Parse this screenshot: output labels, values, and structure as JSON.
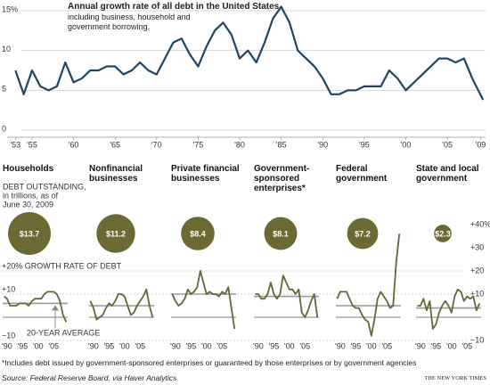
{
  "chart_data": [
    {
      "type": "line",
      "title": "Annual growth rate of all debt in the United States",
      "subtitle": "including business, household and government borrowing.",
      "x": [
        1953,
        1954,
        1955,
        1956,
        1957,
        1958,
        1959,
        1960,
        1961,
        1962,
        1963,
        1964,
        1965,
        1966,
        1967,
        1968,
        1969,
        1970,
        1971,
        1972,
        1973,
        1974,
        1975,
        1976,
        1977,
        1978,
        1979,
        1980,
        1981,
        1982,
        1983,
        1984,
        1985,
        1986,
        1987,
        1988,
        1989,
        1990,
        1991,
        1992,
        1993,
        1994,
        1995,
        1996,
        1997,
        1998,
        1999,
        2000,
        2001,
        2002,
        2003,
        2004,
        2005,
        2006,
        2007,
        2008,
        2009.3
      ],
      "values": [
        7.5,
        4.5,
        7.5,
        5.5,
        5,
        5.5,
        8.5,
        6,
        6.5,
        7.5,
        7.5,
        8,
        8,
        7,
        7.5,
        8.5,
        7.5,
        7,
        9,
        11,
        11.5,
        9.5,
        8,
        10.5,
        12.5,
        13.5,
        12,
        9,
        10,
        8.5,
        11,
        14,
        15.5,
        13.5,
        10,
        9,
        8,
        6.5,
        4.5,
        4.5,
        5,
        5,
        5.5,
        5.5,
        5.5,
        7.5,
        6.5,
        5,
        6,
        7,
        8,
        9,
        9,
        8.5,
        9,
        6.5,
        3.8
      ],
      "color": "#1f4466",
      "xlim": [
        1952,
        2009.6
      ],
      "ylim": [
        0,
        15
      ],
      "xticks": [
        {
          "value": 1953,
          "label": "'53"
        },
        {
          "value": 1955,
          "label": "'55"
        },
        {
          "value": 1960,
          "label": "'60"
        },
        {
          "value": 1965,
          "label": "'65"
        },
        {
          "value": 1970,
          "label": "'70"
        },
        {
          "value": 1975,
          "label": "'75"
        },
        {
          "value": 1980,
          "label": "'80"
        },
        {
          "value": 1985,
          "label": "'85"
        },
        {
          "value": 1990,
          "label": "'90"
        },
        {
          "value": 1995,
          "label": "'95"
        },
        {
          "value": 2000,
          "label": "'00"
        },
        {
          "value": 2005,
          "label": "'05"
        },
        {
          "value": 2009,
          "label": "'09"
        }
      ],
      "yticks": [
        0,
        5,
        10,
        {
          "value": 15,
          "label": "15%"
        }
      ],
      "grid": true
    },
    {
      "type": "small_multiples",
      "debt_note": [
        "DEBT OUTSTANDING,",
        "in trillions, as of",
        "June 30, 2009"
      ],
      "average_label": "20-YEAR AVERAGE",
      "x": [
        1989,
        1990,
        1991,
        1992,
        1993,
        1994,
        1995,
        1996,
        1997,
        1998,
        1999,
        2000,
        2001,
        2002,
        2003,
        2004,
        2005,
        2006,
        2007,
        2008,
        2009
      ],
      "xlim": [
        1988.6,
        2009.5
      ],
      "ylim": [
        -10,
        40
      ],
      "xticks": [
        {
          "value": 1990,
          "label": "'90"
        },
        {
          "value": 1995,
          "label": "'95"
        },
        {
          "value": 2000,
          "label": "'00"
        },
        {
          "value": 2005,
          "label": "'05"
        }
      ],
      "yticks": [
        {
          "value": 40,
          "label": "+40%"
        },
        {
          "value": 30,
          "label": "+30"
        },
        {
          "value": 20,
          "label": "+20"
        },
        {
          "value": 10,
          "label": "+10"
        },
        {
          "value": -10,
          "label": "−10"
        }
      ],
      "left_ticks": [
        {
          "value": 20,
          "label": "+20% GROWTH RATE OF DEBT"
        },
        {
          "value": 10,
          "label": "+10"
        },
        {
          "value": -10,
          "label": "−10"
        }
      ],
      "color": "#66663a",
      "bubble_color": "#6b6934",
      "series": [
        {
          "name": "Households",
          "debt": 13.7,
          "debt_label": "$13.7",
          "average": 6,
          "values": [
            9,
            8,
            5,
            5,
            5,
            6,
            6,
            6,
            5,
            7,
            8,
            8,
            8,
            10,
            11,
            11,
            11,
            10,
            7,
            1,
            -2
          ]
        },
        {
          "name": "Nonfinancial businesses",
          "debt": 11.2,
          "debt_label": "$11.2",
          "average": 5,
          "values": [
            7,
            4,
            -1,
            0,
            1,
            4,
            6,
            5,
            7,
            10,
            10,
            9,
            5,
            1,
            2,
            5,
            7,
            9,
            12,
            5,
            0
          ]
        },
        {
          "name": "Private financial businesses",
          "debt": 8.4,
          "debt_label": "$8.4",
          "average": 10,
          "values": [
            10,
            7,
            5,
            6,
            8,
            12,
            10,
            11,
            13,
            20,
            15,
            10,
            11,
            10,
            10,
            9,
            11,
            10,
            13,
            4,
            -5
          ]
        },
        {
          "name": "Government-sponsored enterprises*",
          "debt": 8.1,
          "debt_label": "$8.1",
          "average": 9,
          "values": [
            10,
            10,
            8,
            8,
            10,
            15,
            10,
            8,
            10,
            18,
            15,
            12,
            12,
            10,
            12,
            2,
            0,
            3,
            7,
            10,
            0
          ]
        },
        {
          "name": "Federal government",
          "debt": 7.2,
          "debt_label": "$7.2",
          "average": 5,
          "values": [
            8,
            11,
            11,
            11,
            8,
            5,
            4,
            4,
            1,
            -1,
            -2,
            -8,
            -1,
            8,
            11,
            9,
            7,
            4,
            5,
            24,
            36
          ]
        },
        {
          "name": "State and local government",
          "debt": 2.3,
          "debt_label": "$2.3",
          "average": 4,
          "values": [
            5,
            5,
            8,
            3,
            7,
            -5,
            -3,
            2,
            5,
            7,
            5,
            2,
            9,
            12,
            11,
            7,
            9,
            8,
            9,
            3,
            6
          ]
        }
      ]
    }
  ],
  "footnote": "*Includes debt issued by government-sponsored enterprises or guaranteed by those enterprises or by government agencies",
  "source": "Source: Federal Reserve Board, via Haver Analytics",
  "credit": "THE NEW YORK TIMES"
}
